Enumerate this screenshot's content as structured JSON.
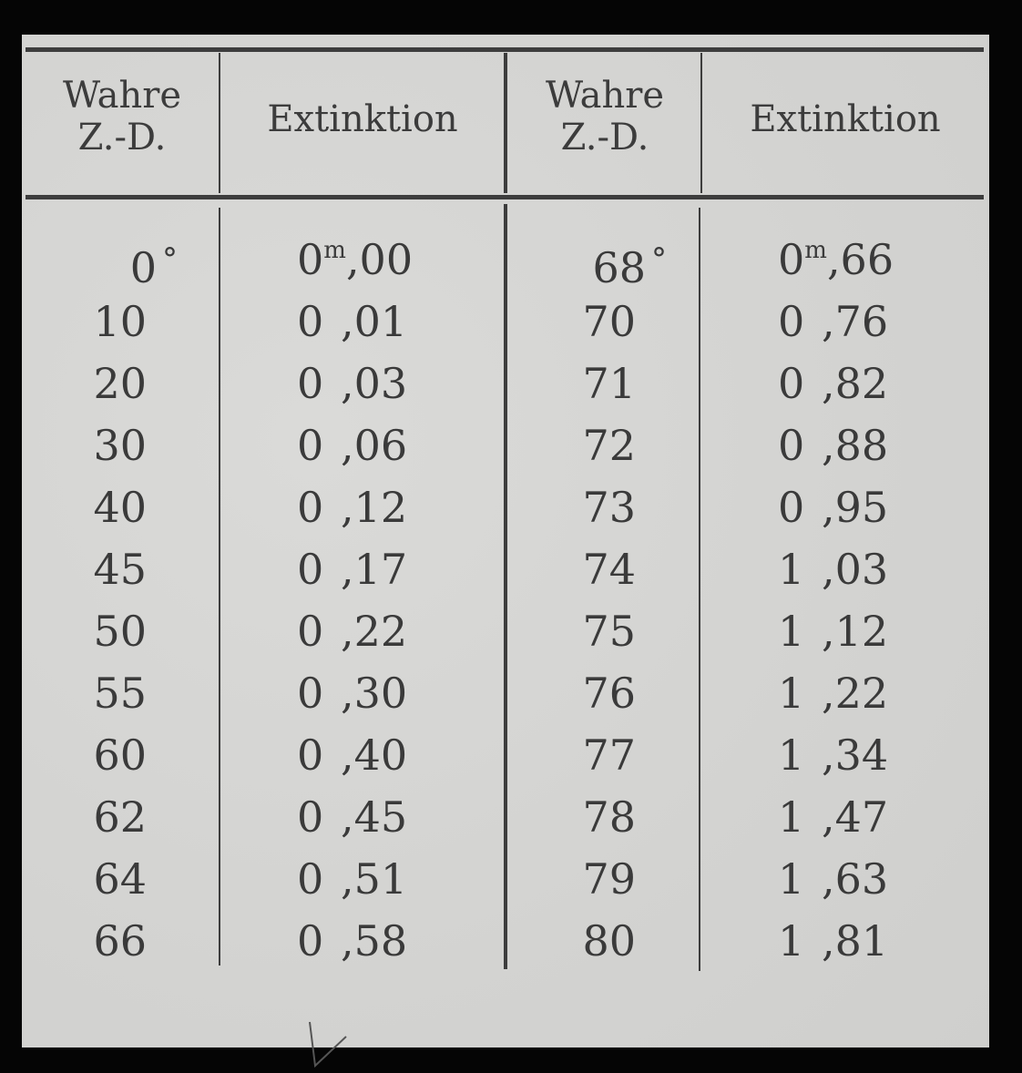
{
  "table": {
    "headers": {
      "zd_left": [
        "Wahre",
        "Z.-D."
      ],
      "ext_left": "Extinktion",
      "zd_right": [
        "Wahre",
        "Z.-D."
      ],
      "ext_right": "Extinktion"
    },
    "unit_superscript": "m",
    "degree_symbol": "°",
    "left_rows": [
      {
        "zd": "0",
        "int": "0",
        "frac": ",00"
      },
      {
        "zd": "10",
        "int": "0",
        "frac": ",01"
      },
      {
        "zd": "20",
        "int": "0",
        "frac": ",03"
      },
      {
        "zd": "30",
        "int": "0",
        "frac": ",06"
      },
      {
        "zd": "40",
        "int": "0",
        "frac": ",12"
      },
      {
        "zd": "45",
        "int": "0",
        "frac": ",17"
      },
      {
        "zd": "50",
        "int": "0",
        "frac": ",22"
      },
      {
        "zd": "55",
        "int": "0",
        "frac": ",30"
      },
      {
        "zd": "60",
        "int": "0",
        "frac": ",40"
      },
      {
        "zd": "62",
        "int": "0",
        "frac": ",45"
      },
      {
        "zd": "64",
        "int": "0",
        "frac": ",51"
      },
      {
        "zd": "66",
        "int": "0",
        "frac": ",58"
      }
    ],
    "right_rows": [
      {
        "zd": "68",
        "int": "0",
        "frac": ",66"
      },
      {
        "zd": "70",
        "int": "0",
        "frac": ",76"
      },
      {
        "zd": "71",
        "int": "0",
        "frac": ",82"
      },
      {
        "zd": "72",
        "int": "0",
        "frac": ",88"
      },
      {
        "zd": "73",
        "int": "0",
        "frac": ",95"
      },
      {
        "zd": "74",
        "int": "1",
        "frac": ",03"
      },
      {
        "zd": "75",
        "int": "1",
        "frac": ",12"
      },
      {
        "zd": "76",
        "int": "1",
        "frac": ",22"
      },
      {
        "zd": "77",
        "int": "1",
        "frac": ",34"
      },
      {
        "zd": "78",
        "int": "1",
        "frac": ",47"
      },
      {
        "zd": "79",
        "int": "1",
        "frac": ",63"
      },
      {
        "zd": "80",
        "int": "1",
        "frac": ",81"
      }
    ]
  }
}
